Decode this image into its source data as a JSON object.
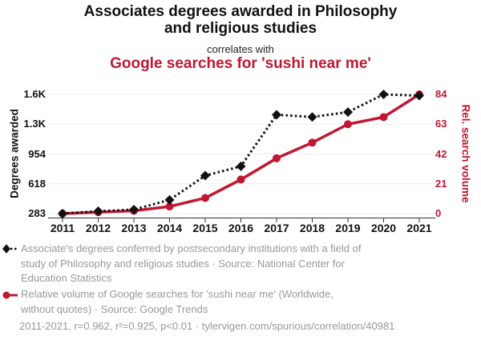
{
  "header": {
    "title_lines": [
      "Associates degrees awarded in Philosophy",
      "and religious studies"
    ],
    "subtitle": "correlates with",
    "series_title": "Google searches for 'sushi near me'"
  },
  "chart_data": {
    "type": "line",
    "title": "Associates degrees awarded in Philosophy and religious studies correlates with Google searches for 'sushi near me'",
    "x": [
      2011,
      2012,
      2013,
      2014,
      2015,
      2016,
      2017,
      2018,
      2019,
      2020,
      2021
    ],
    "series": [
      {
        "name": "Degrees awarded",
        "axis": "left",
        "color": "#111111",
        "style": "dotted",
        "marker": "diamond",
        "values": [
          283,
          310,
          328,
          437,
          710,
          815,
          1395,
          1370,
          1425,
          1624,
          1610
        ]
      },
      {
        "name": "Rel. search volume",
        "axis": "right",
        "color": "#c11733",
        "style": "solid",
        "marker": "circle",
        "values": [
          0,
          1,
          2,
          5,
          11,
          24,
          39,
          50,
          63,
          68,
          84
        ]
      }
    ],
    "left_axis": {
      "label": "Degrees awarded",
      "ticks": [
        "1.6K",
        "1.3K",
        "954",
        "618",
        "283"
      ],
      "min": 283,
      "max": 1624
    },
    "right_axis": {
      "label": "Rel. search volume",
      "ticks": [
        "84",
        "63",
        "42",
        "21",
        "0"
      ],
      "min": 0,
      "max": 84
    },
    "grid": true,
    "legend_position": "bottom"
  },
  "legend": {
    "entries": [
      {
        "marker": "black-diamond-dotted",
        "lines": [
          "Associate's degrees conferred by postsecondary institutions with a field of",
          "study of Philosophy and religious studies · Source: National Center for",
          "Education Statistics"
        ]
      },
      {
        "marker": "red-circle-solid",
        "lines": [
          "Relative volume of Google searches for 'sushi near me' (Worldwide,",
          "without quotes) · Source: Google Trends"
        ]
      }
    ]
  },
  "footer": {
    "text": "2011-2021, r=0.962, r²=0.925, p<0.01 · tylervigen.com/spurious/correlation/40981"
  },
  "colors": {
    "red": "#c11733",
    "black": "#111111",
    "gray_text": "#999999",
    "gridline": "#ededed",
    "axis_line": "#333333"
  }
}
